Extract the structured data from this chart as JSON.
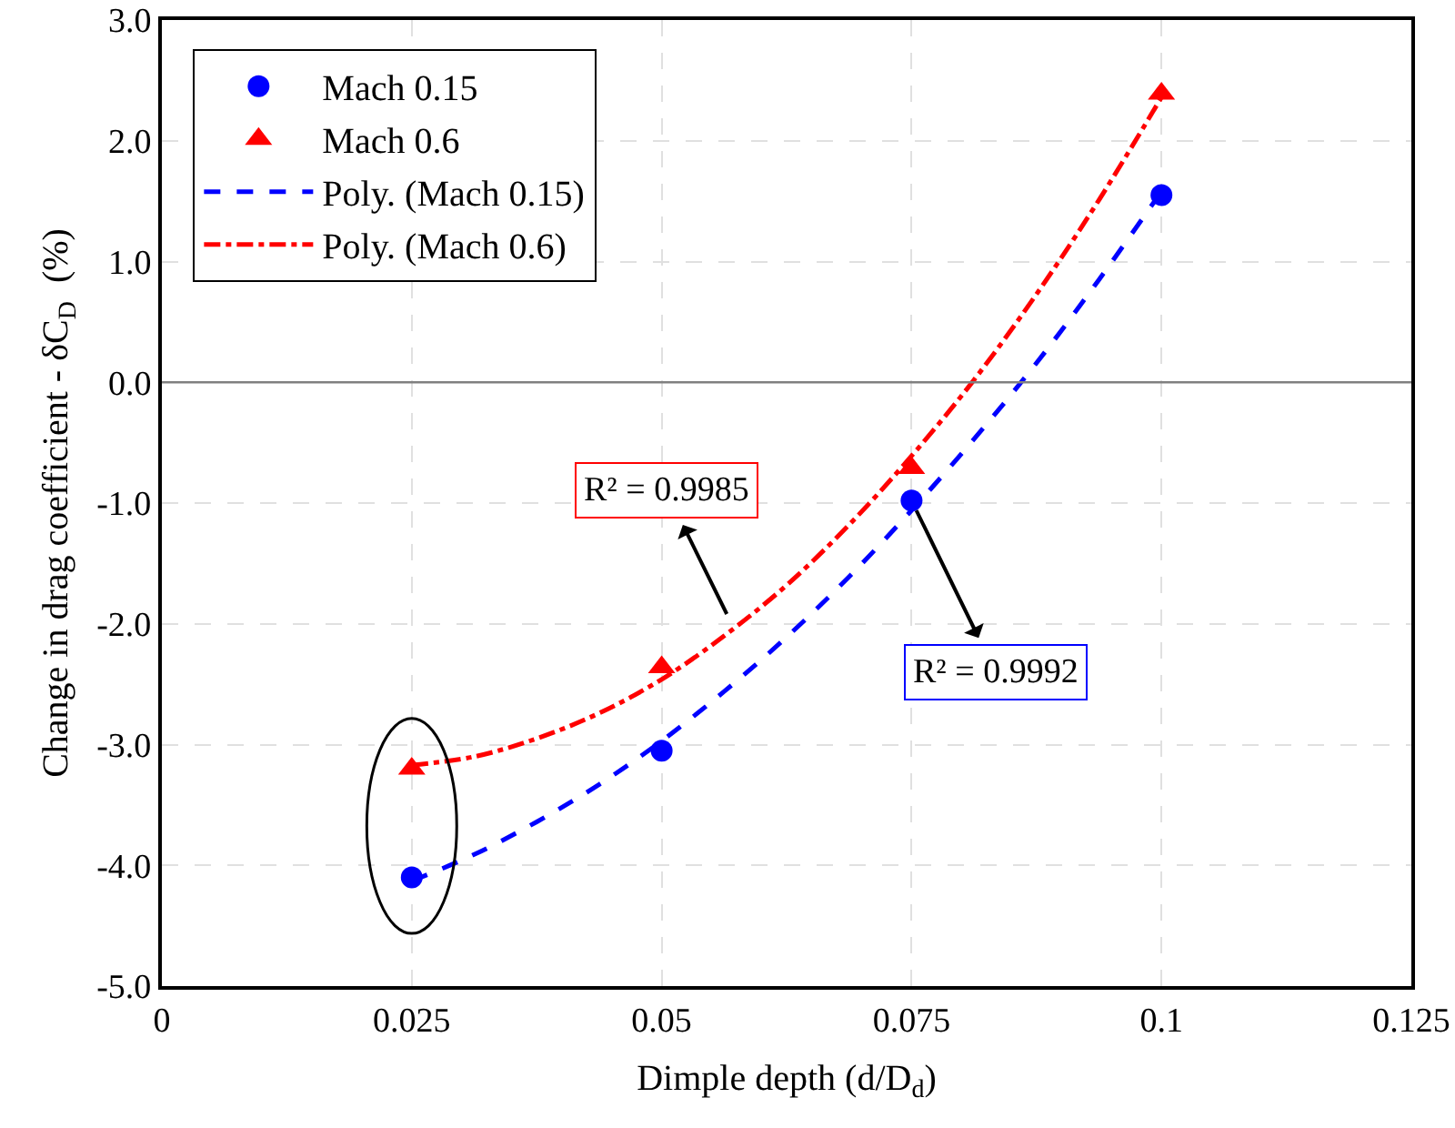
{
  "chart_data": {
    "type": "scatter",
    "xlabel": "Dimple depth (d/D$_{d}$)",
    "ylabel": "Change in drag coefficient - δC$_{D}$  (%)",
    "x": [
      0.025,
      0.05,
      0.075,
      0.1
    ],
    "series": [
      {
        "name": "Mach 0.15",
        "color": "#0000ff",
        "marker": "circle",
        "values": [
          -4.1,
          -3.05,
          -0.98,
          1.55
        ]
      },
      {
        "name": "Mach 0.6",
        "color": "#ff0000",
        "marker": "triangle",
        "values": [
          -3.2,
          -2.36,
          -0.71,
          2.39
        ]
      },
      {
        "name": "Poly. (Mach 0.15)",
        "type": "line",
        "color": "#0000ff",
        "line_style": "dashed",
        "marker": "none",
        "x": [
          0.025,
          0.03125,
          0.0375,
          0.04375,
          0.05,
          0.05625,
          0.0625,
          0.06875,
          0.075,
          0.08125,
          0.0875,
          0.09375,
          0.1
        ],
        "values": [
          -4.13,
          -3.91,
          -3.64,
          -3.33,
          -2.97,
          -2.56,
          -2.11,
          -1.61,
          -1.06,
          -0.47,
          0.16,
          0.85,
          1.58
        ]
      },
      {
        "name": "Poly. (Mach 0.6)",
        "type": "line",
        "color": "#ff0000",
        "line_style": "dashdot",
        "marker": "none",
        "x": [
          0.025,
          0.03125,
          0.0375,
          0.04375,
          0.05,
          0.05625,
          0.0625,
          0.06875,
          0.075,
          0.08125,
          0.0875,
          0.09375,
          0.1
        ],
        "values": [
          -3.17,
          -3.1,
          -2.95,
          -2.74,
          -2.46,
          -2.1,
          -1.68,
          -1.18,
          -0.61,
          0.02,
          0.73,
          1.51,
          2.36
        ]
      }
    ],
    "annotations": [
      {
        "text": "R² = 0.9992",
        "x": 0.075,
        "y": -0.98
      },
      {
        "text": "R² = 0.9985",
        "x": 0.057,
        "y": -2.0
      }
    ],
    "ref_lines": [
      {
        "axis": "y",
        "value": 0,
        "color": "#808080"
      }
    ],
    "xlim": [
      0,
      0.125
    ],
    "xticks": [
      0,
      0.025,
      0.05,
      0.075,
      0.1,
      0.125
    ],
    "ylim": [
      -5,
      3
    ],
    "yticks": [
      {
        "value": -5,
        "label": "-5.0"
      },
      {
        "value": -4,
        "label": "-4.0"
      },
      {
        "value": -3,
        "label": "-3.0"
      },
      {
        "value": -2,
        "label": "-2.0"
      },
      {
        "value": -1,
        "label": "-1.0"
      },
      {
        "value": 0,
        "label": "0.0"
      },
      {
        "value": 1,
        "label": "1.0"
      },
      {
        "value": 2,
        "label": "2.0"
      },
      {
        "value": 3,
        "label": "3.0"
      }
    ],
    "grid": true,
    "legend": "top left"
  }
}
